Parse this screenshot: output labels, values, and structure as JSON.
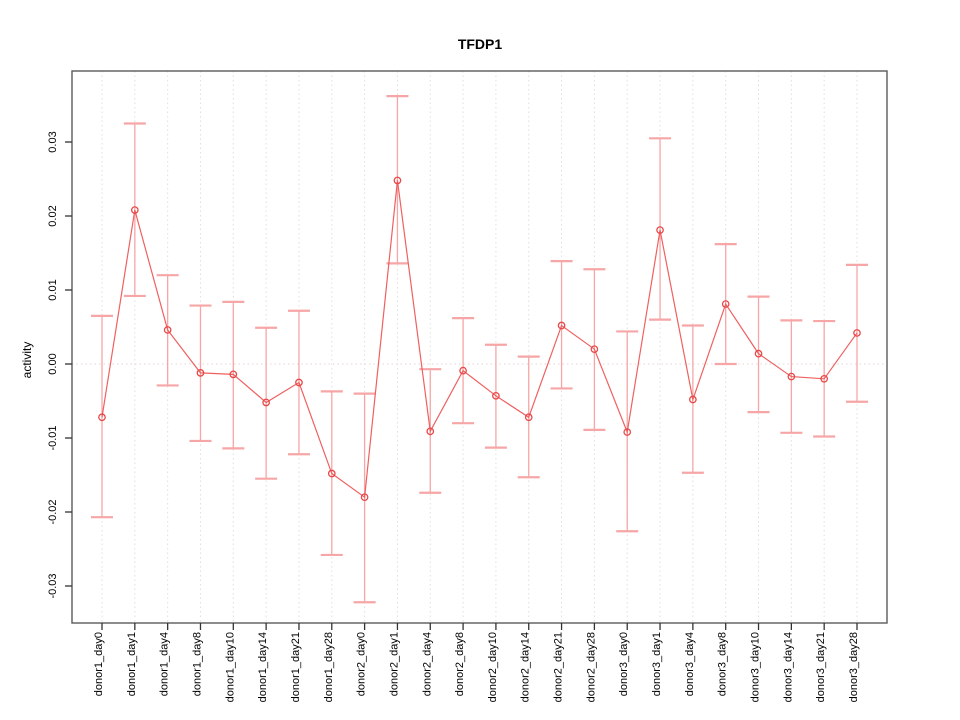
{
  "chart_data": {
    "type": "line",
    "title": "TFDP1",
    "xlabel": "",
    "ylabel": "activity",
    "legend": "none",
    "grid": "vertical dotted gridline per category; horizontal dotted line at y=0",
    "point_style": "open-circle with vertical error bars and caps",
    "categories": [
      "donor1_day0",
      "donor1_day1",
      "donor1_day4",
      "donor1_day8",
      "donor1_day10",
      "donor1_day14",
      "donor1_day21",
      "donor1_day28",
      "donor2_day0",
      "donor2_day1",
      "donor2_day4",
      "donor2_day8",
      "donor2_day10",
      "donor2_day14",
      "donor2_day21",
      "donor2_day28",
      "donor3_day0",
      "donor3_day1",
      "donor3_day4",
      "donor3_day8",
      "donor3_day10",
      "donor3_day14",
      "donor3_day21",
      "donor3_day28"
    ],
    "series": [
      {
        "name": "activity",
        "values": [
          -0.0072,
          0.0208,
          0.0046,
          -0.0012,
          -0.0014,
          -0.0052,
          -0.0025,
          -0.0148,
          -0.018,
          0.0248,
          -0.0091,
          -0.0009,
          -0.0043,
          -0.0072,
          0.0052,
          0.002,
          -0.0092,
          0.0181,
          -0.0048,
          0.0081,
          0.0014,
          -0.0017,
          -0.002,
          0.0042
        ]
      }
    ],
    "error_bars": {
      "low": [
        -0.0207,
        0.0092,
        -0.0029,
        -0.0104,
        -0.0114,
        -0.0155,
        -0.0122,
        -0.0258,
        -0.0322,
        0.0136,
        -0.0174,
        -0.008,
        -0.0113,
        -0.0153,
        -0.0033,
        -0.0089,
        -0.0226,
        0.006,
        -0.0147,
        0.0,
        -0.0065,
        -0.0093,
        -0.0098,
        -0.0051
      ],
      "high": [
        0.0065,
        0.0325,
        0.012,
        0.0079,
        0.0084,
        0.0049,
        0.0072,
        -0.0037,
        -0.004,
        0.0362,
        -0.0007,
        0.0062,
        0.0026,
        0.001,
        0.0139,
        0.0128,
        0.0044,
        0.0305,
        0.0052,
        0.0162,
        0.0091,
        0.0059,
        0.0058,
        0.0134
      ]
    },
    "yticks": [
      0.03,
      0.02,
      0.01,
      0.0,
      -0.01,
      -0.02,
      -0.03
    ],
    "ytick_labels": [
      "0.03",
      "0.02",
      "0.01",
      "0.00",
      "-0.01",
      "-0.02",
      "-0.03"
    ],
    "ylim": [
      -0.035,
      0.0396
    ],
    "colors": {
      "point": "#e84848",
      "line": "#ef6060",
      "error_bar": "#f6a6a6",
      "gridline": "#dfdfdf",
      "zero_line": "#e7d5d5",
      "box": "#5a5a5a",
      "tick": "#333333",
      "text": "#000000"
    }
  }
}
